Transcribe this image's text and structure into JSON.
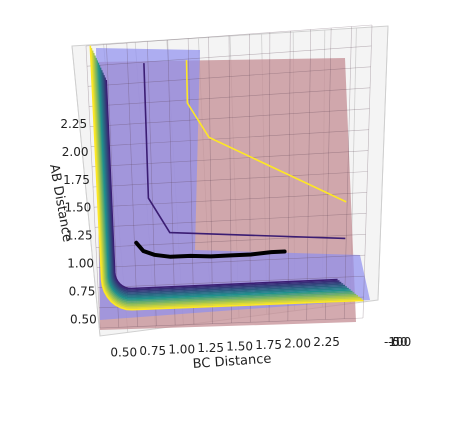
{
  "chart_data": {
    "type": "surface-contour-3d",
    "title": "",
    "xlabel": "BC Distance",
    "ylabel": "AB Distance",
    "zlabel": "",
    "x_ticks": [
      "0.50",
      "0.75",
      "1.00",
      "1.25",
      "1.50",
      "1.75",
      "2.00",
      "2.25"
    ],
    "y_ticks": [
      "0.50",
      "0.75",
      "1.00",
      "1.25",
      "1.50",
      "1.75",
      "2.00",
      "2.25"
    ],
    "z_ticks": [
      "-100",
      "-50",
      "0"
    ],
    "xlim": [
      0.45,
      2.45
    ],
    "ylim": [
      0.45,
      2.45
    ],
    "grid": true,
    "colors": {
      "surface_blue": "#9b9bf4",
      "surface_red": "#c48e94",
      "contour_low": "#3b1d73",
      "contour_mid": "#21918c",
      "contour_high": "#fde725",
      "trajectory": "#000000"
    },
    "contour_levels": 15,
    "trajectory": {
      "x": [
        0.75,
        0.8,
        0.88,
        1.0,
        1.15,
        1.3,
        1.45,
        1.6,
        1.75,
        1.85
      ],
      "y": [
        1.04,
        0.98,
        0.95,
        0.93,
        0.93,
        0.92,
        0.92,
        0.92,
        0.93,
        0.93
      ]
    }
  }
}
